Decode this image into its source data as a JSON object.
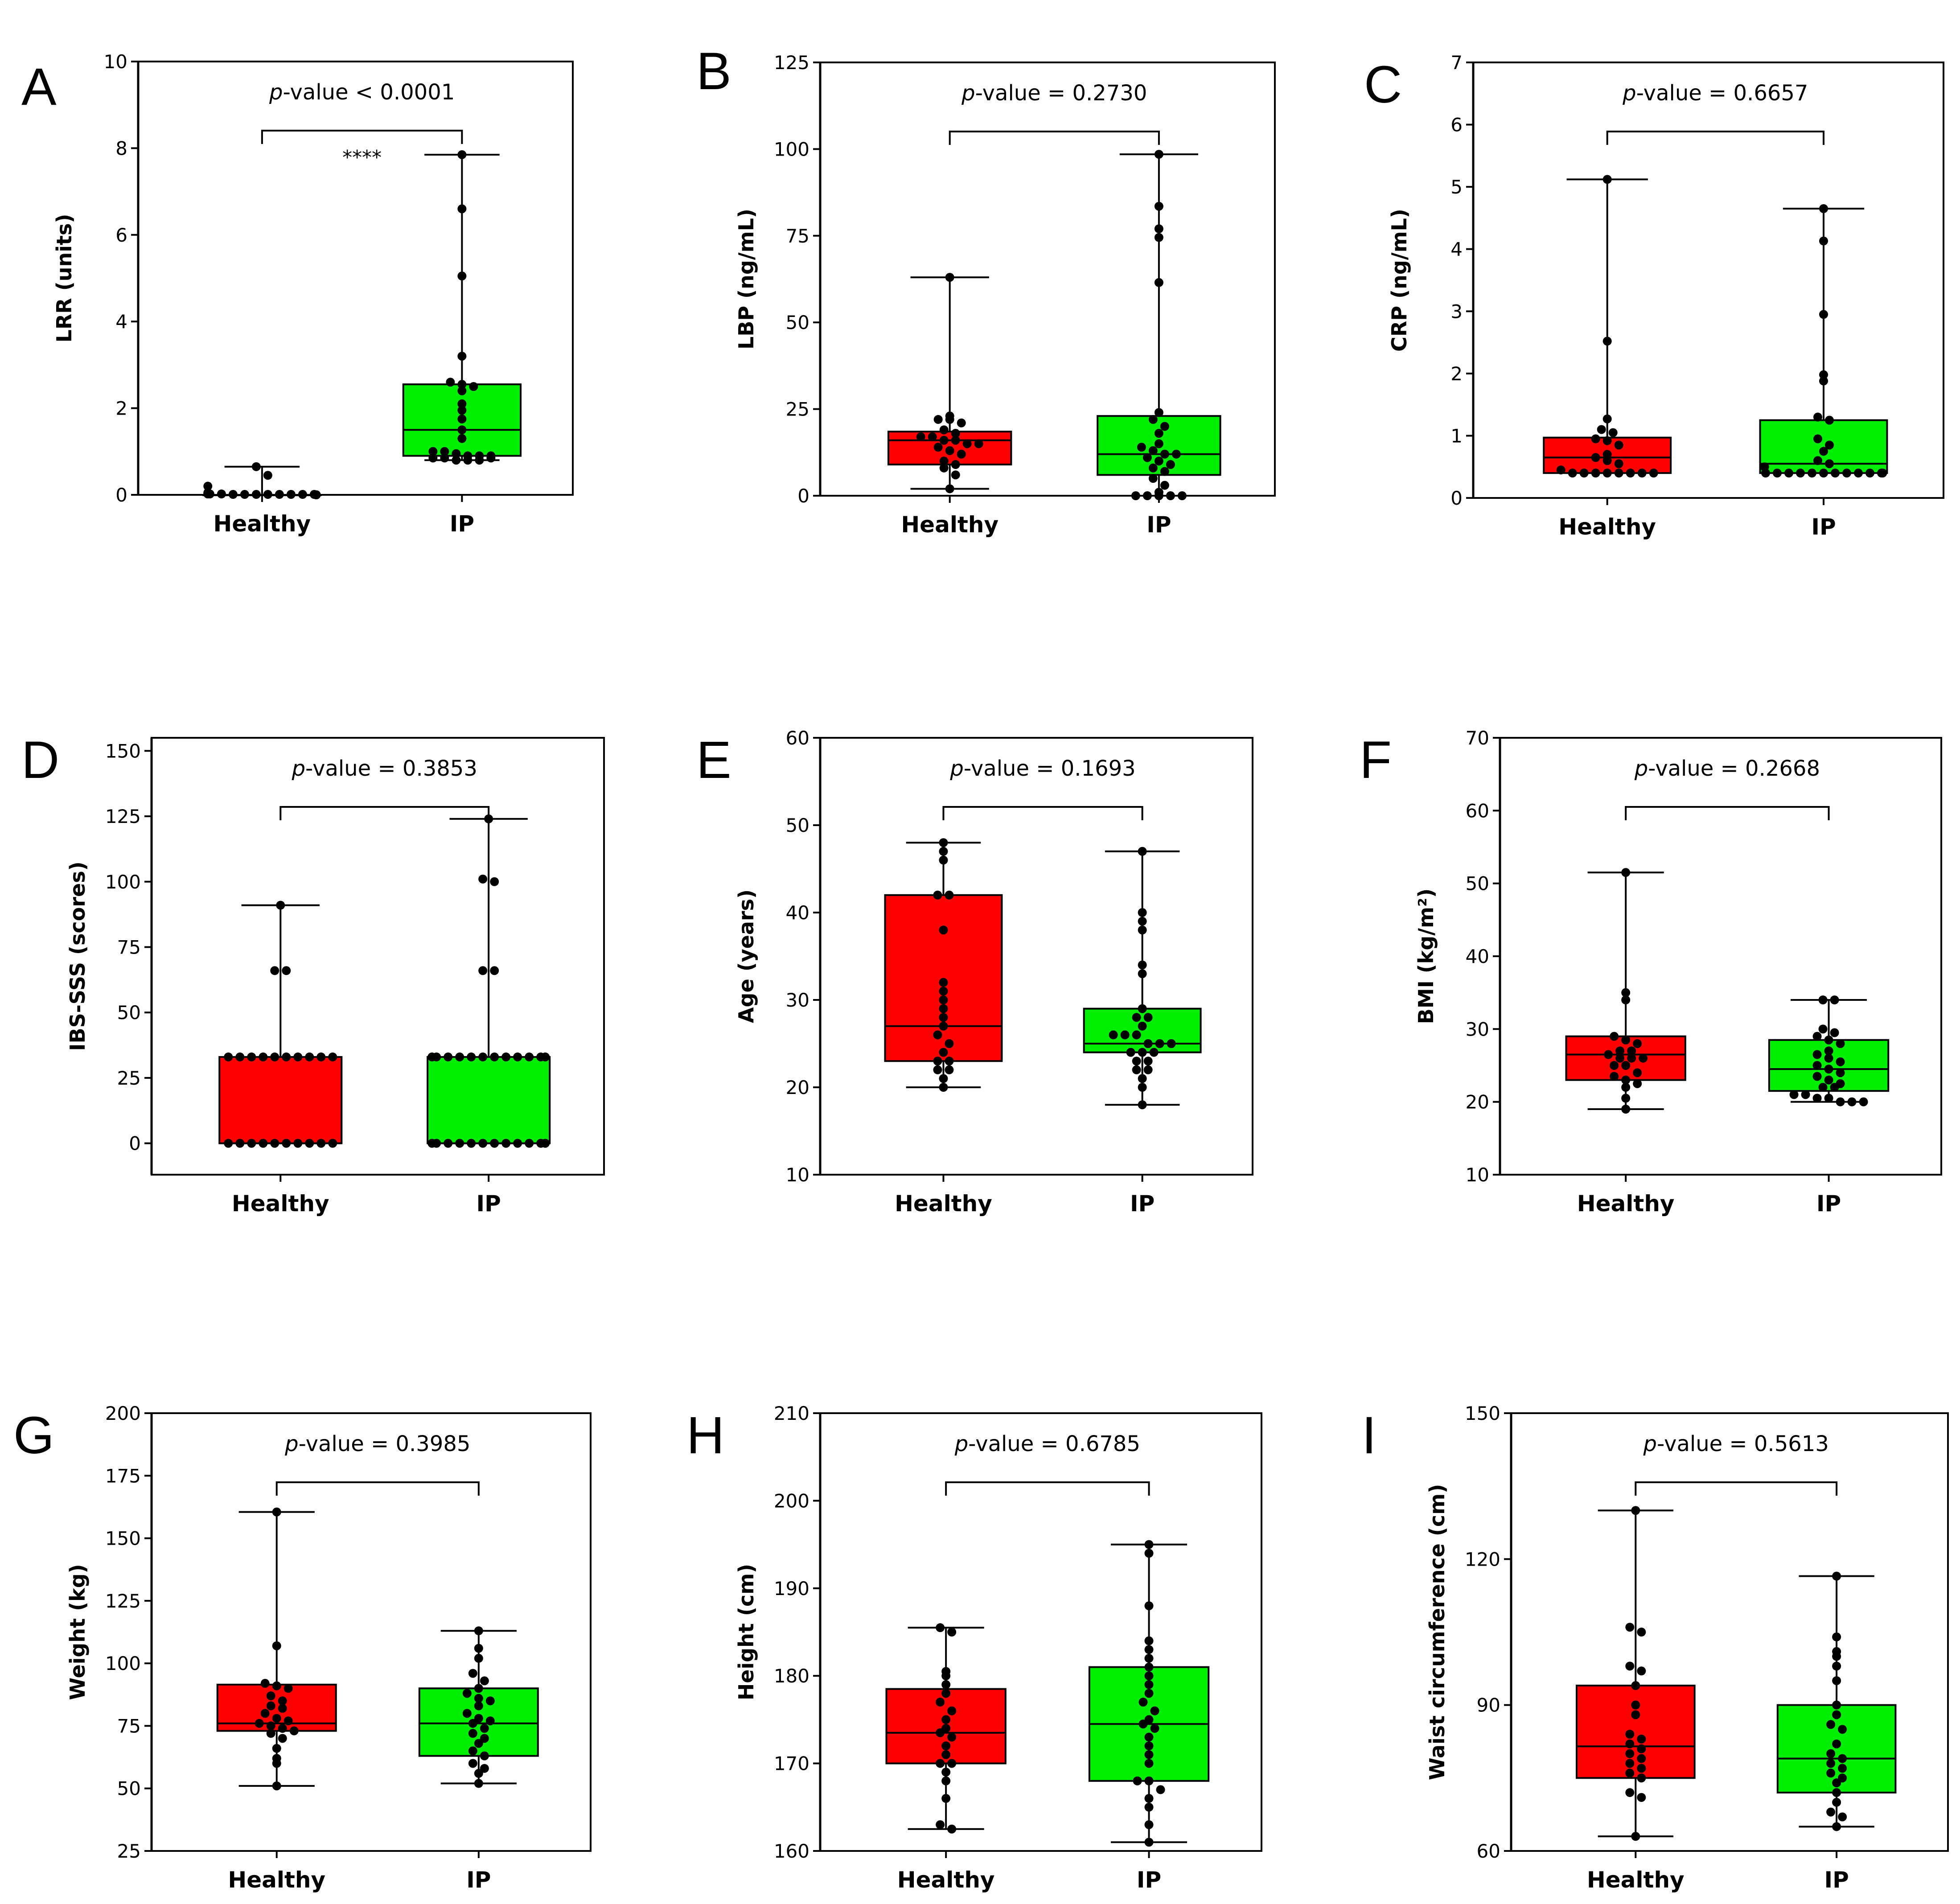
{
  "colors": {
    "healthy_box": "#ff0000",
    "ip_box": "#00ee00",
    "points": "#000000",
    "axis": "#000000"
  },
  "chart_data": [
    {
      "type": "box",
      "panel_label": "A",
      "ylabel": "LRR (units)",
      "ylim": [
        0,
        10
      ],
      "yticks": [
        0,
        2,
        4,
        6,
        8,
        10
      ],
      "categories": [
        "Healthy",
        "IP"
      ],
      "p_value_prefix": "p",
      "p_value_text": "-value < 0.0001",
      "significance": "****",
      "boxes": [
        {
          "name": "Healthy",
          "min": 0,
          "q1": 0,
          "median": 0,
          "q3": 0,
          "max": 0.65,
          "points": [
            0.65,
            0.45,
            0.2,
            0.05,
            0.03,
            0.02,
            0.02,
            0.02,
            0.02,
            0.01,
            0.01,
            0.01,
            0.01,
            0.01,
            0.01,
            0.01,
            0.01,
            0,
            0,
            0,
            0,
            0
          ]
        },
        {
          "name": "IP",
          "min": 0.8,
          "q1": 0.9,
          "median": 1.5,
          "q3": 2.55,
          "max": 7.85,
          "points": [
            7.85,
            6.6,
            5.05,
            3.2,
            2.6,
            2.55,
            2.5,
            2.4,
            2.1,
            1.95,
            1.75,
            1.5,
            1.3,
            1.0,
            1.0,
            0.95,
            0.9,
            0.9,
            0.85,
            0.85,
            0.8,
            0.8,
            0.8,
            0.85,
            0.9
          ]
        }
      ]
    },
    {
      "type": "box",
      "panel_label": "B",
      "ylabel": "LBP (ng/mL)",
      "ylim": [
        0,
        125
      ],
      "yticks": [
        0,
        25,
        50,
        75,
        100,
        125
      ],
      "categories": [
        "Healthy",
        "IP"
      ],
      "p_value_prefix": "p",
      "p_value_text": "-value = 0.2730",
      "significance": "",
      "boxes": [
        {
          "name": "Healthy",
          "min": 2,
          "q1": 9,
          "median": 16,
          "q3": 18.5,
          "max": 63,
          "points": [
            63,
            23,
            22,
            22,
            21,
            19,
            18,
            17,
            17,
            16,
            16,
            15,
            15,
            14,
            13,
            12,
            10,
            9,
            8,
            6,
            2
          ]
        },
        {
          "name": "IP",
          "min": 0,
          "q1": 6,
          "median": 12,
          "q3": 23,
          "max": 98.5,
          "points": [
            98.5,
            83.5,
            77,
            74.5,
            61.5,
            24,
            22,
            20,
            18,
            15,
            14,
            13,
            12,
            12,
            11,
            10,
            9,
            8,
            7,
            5,
            3,
            1,
            0,
            0,
            0,
            0,
            0
          ]
        }
      ]
    },
    {
      "type": "box",
      "panel_label": "C",
      "ylabel": "CRP (ng/mL)",
      "ylim": [
        0,
        7
      ],
      "yticks": [
        0,
        1,
        2,
        3,
        4,
        5,
        6,
        7
      ],
      "categories": [
        "Healthy",
        "IP"
      ],
      "p_value_prefix": "p",
      "p_value_text": "-value = 0.6657",
      "significance": "",
      "boxes": [
        {
          "name": "Healthy",
          "min": 0.4,
          "q1": 0.4,
          "median": 0.65,
          "q3": 0.97,
          "max": 5.12,
          "points": [
            5.12,
            2.52,
            1.27,
            1.1,
            1.05,
            0.95,
            0.92,
            0.85,
            0.7,
            0.65,
            0.6,
            0.55,
            0.45,
            0.4,
            0.4,
            0.4,
            0.4,
            0.4,
            0.4,
            0.4,
            0.4
          ]
        },
        {
          "name": "IP",
          "min": 0.4,
          "q1": 0.4,
          "median": 0.55,
          "q3": 1.25,
          "max": 4.65,
          "points": [
            4.65,
            4.13,
            2.95,
            1.98,
            1.88,
            1.3,
            1.25,
            0.95,
            0.85,
            0.75,
            0.6,
            0.55,
            0.5,
            0.4,
            0.4,
            0.4,
            0.4,
            0.4,
            0.4,
            0.4,
            0.4,
            0.4,
            0.4,
            0.4,
            0.4
          ]
        }
      ]
    },
    {
      "type": "box",
      "panel_label": "D",
      "ylabel": "IBS-SSS  (scores)",
      "ylim": [
        -12,
        155
      ],
      "yticks": [
        0,
        25,
        50,
        75,
        100,
        125,
        150
      ],
      "categories": [
        "Healthy",
        "IP"
      ],
      "p_value_prefix": "p",
      "p_value_text": "-value = 0.3853",
      "significance": "",
      "boxes": [
        {
          "name": "Healthy",
          "min": 0,
          "q1": 0,
          "median": 0,
          "q3": 33,
          "max": 91,
          "points": [
            91,
            66,
            66,
            33,
            33,
            33,
            33,
            33,
            33,
            33,
            33,
            33,
            33,
            0,
            0,
            0,
            0,
            0,
            0,
            0,
            0,
            0,
            0
          ]
        },
        {
          "name": "IP",
          "min": 0,
          "q1": 0,
          "median": 0,
          "q3": 33,
          "max": 124,
          "points": [
            124,
            101,
            100,
            66,
            66,
            33,
            33,
            33,
            33,
            33,
            33,
            33,
            33,
            33,
            33,
            33,
            33,
            0,
            0,
            0,
            0,
            0,
            0,
            0,
            0,
            0,
            0,
            0,
            0
          ]
        }
      ]
    },
    {
      "type": "box",
      "panel_label": "E",
      "ylabel": "Age (years)",
      "ylim": [
        10,
        60
      ],
      "yticks": [
        10,
        20,
        30,
        40,
        50,
        60
      ],
      "categories": [
        "Healthy",
        "IP"
      ],
      "p_value_prefix": "p",
      "p_value_text": "-value = 0.1693",
      "significance": "",
      "boxes": [
        {
          "name": "Healthy",
          "min": 20,
          "q1": 23,
          "median": 27,
          "q3": 42,
          "max": 48,
          "points": [
            48,
            47,
            46,
            42,
            42,
            38,
            32,
            31,
            30,
            29,
            28,
            27,
            26,
            25,
            24,
            23,
            23,
            22,
            22,
            21,
            20
          ]
        },
        {
          "name": "IP",
          "min": 18,
          "q1": 24,
          "median": 25,
          "q3": 29,
          "max": 47,
          "points": [
            47,
            40,
            39,
            38,
            34,
            33,
            29,
            28,
            28,
            27,
            26,
            26,
            26,
            25,
            25,
            25,
            24,
            24,
            24,
            23,
            23,
            22,
            22,
            21,
            20,
            18
          ]
        }
      ]
    },
    {
      "type": "box",
      "panel_label": "F",
      "ylabel": "BMI (kg/m²)",
      "ylim": [
        10,
        70
      ],
      "yticks": [
        10,
        20,
        30,
        40,
        50,
        60,
        70
      ],
      "categories": [
        "Healthy",
        "IP"
      ],
      "p_value_prefix": "p",
      "p_value_text": "-value = 0.2668",
      "significance": "",
      "boxes": [
        {
          "name": "Healthy",
          "min": 19,
          "q1": 23,
          "median": 26.5,
          "q3": 29,
          "max": 51.5,
          "points": [
            51.5,
            35,
            34,
            29,
            28.5,
            28,
            27,
            27,
            26.5,
            26,
            26,
            26,
            25,
            25,
            24,
            23.5,
            23,
            22.5,
            22,
            20.5,
            19
          ]
        },
        {
          "name": "IP",
          "min": 20,
          "q1": 21.5,
          "median": 24.5,
          "q3": 28.5,
          "max": 34,
          "points": [
            34,
            34,
            30,
            29.5,
            29,
            28.5,
            28,
            27,
            26.5,
            26,
            25.5,
            25,
            24.5,
            24,
            23.5,
            23,
            22.5,
            22,
            22,
            21,
            21,
            20.5,
            20.5,
            20,
            20,
            20
          ]
        }
      ]
    },
    {
      "type": "box",
      "panel_label": "G",
      "ylabel": "Weight (kg)",
      "ylim": [
        25,
        200
      ],
      "yticks": [
        25,
        50,
        75,
        100,
        125,
        150,
        175,
        200
      ],
      "categories": [
        "Healthy",
        "IP"
      ],
      "p_value_prefix": "p",
      "p_value_text": "-value = 0.3985",
      "significance": "",
      "boxes": [
        {
          "name": "Healthy",
          "min": 51,
          "q1": 73,
          "median": 76,
          "q3": 91.5,
          "max": 160.5,
          "points": [
            160.5,
            107,
            92,
            91,
            90,
            87,
            85,
            83,
            82,
            80,
            78,
            77,
            76,
            75,
            74,
            73,
            72,
            70,
            66,
            62,
            60,
            51
          ]
        },
        {
          "name": "IP",
          "min": 52,
          "q1": 63,
          "median": 76,
          "q3": 90,
          "max": 113,
          "points": [
            113,
            106,
            102,
            96,
            93,
            90,
            88,
            86,
            85,
            83,
            80,
            78,
            77,
            76,
            74,
            72,
            70,
            68,
            65,
            63,
            60,
            58,
            56,
            52
          ]
        }
      ]
    },
    {
      "type": "box",
      "panel_label": "H",
      "ylabel": "Height (cm)",
      "ylim": [
        160,
        210
      ],
      "yticks": [
        160,
        170,
        180,
        190,
        200,
        210
      ],
      "categories": [
        "Healthy",
        "IP"
      ],
      "p_value_prefix": "p",
      "p_value_text": "-value = 0.6785",
      "significance": "",
      "boxes": [
        {
          "name": "Healthy",
          "min": 162.5,
          "q1": 170,
          "median": 173.5,
          "q3": 178.5,
          "max": 185.5,
          "points": [
            185.5,
            185,
            180.5,
            180,
            179,
            178,
            177,
            176,
            175,
            174,
            173.5,
            173,
            172,
            171,
            170,
            170,
            169,
            168,
            166,
            163,
            162.5
          ]
        },
        {
          "name": "IP",
          "min": 161,
          "q1": 168,
          "median": 174.5,
          "q3": 181,
          "max": 195,
          "points": [
            195,
            194,
            188,
            184,
            183,
            182,
            181,
            180,
            179,
            178,
            177,
            176,
            175,
            174.5,
            174,
            173,
            172,
            171,
            170,
            168,
            168,
            167,
            166,
            165,
            163,
            161
          ]
        }
      ]
    },
    {
      "type": "box",
      "panel_label": "I",
      "ylabel": "Waist circumference (cm)",
      "ylim": [
        60,
        150
      ],
      "yticks": [
        60,
        90,
        120,
        150
      ],
      "categories": [
        "Healthy",
        "IP"
      ],
      "p_value_prefix": "p",
      "p_value_text": "-value = 0.5613",
      "significance": "",
      "boxes": [
        {
          "name": "Healthy",
          "min": 63,
          "q1": 75,
          "median": 81.5,
          "q3": 94,
          "max": 130,
          "points": [
            130,
            106,
            105,
            98,
            97,
            94,
            90,
            88,
            84,
            83,
            82,
            81,
            80,
            79,
            78,
            77,
            76,
            75,
            72,
            71,
            63
          ]
        },
        {
          "name": "IP",
          "min": 65,
          "q1": 72,
          "median": 79,
          "q3": 90,
          "max": 116.5,
          "points": [
            116.5,
            104,
            101,
            100,
            98,
            95,
            90,
            88,
            86,
            85,
            82,
            80,
            79,
            78,
            77,
            76,
            75,
            74,
            72,
            70,
            68,
            67,
            65
          ]
        }
      ]
    }
  ]
}
